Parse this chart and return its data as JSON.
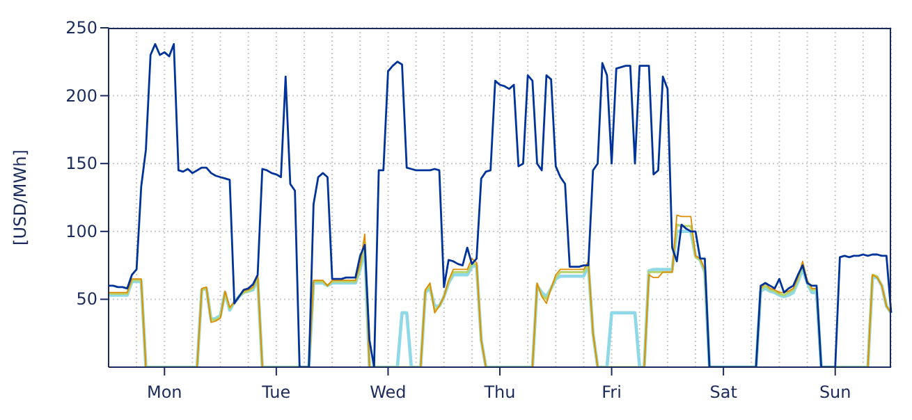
{
  "chart_data": {
    "type": "line",
    "ylabel": "[USD/MWh]",
    "ylim": [
      0,
      250
    ],
    "yticks": [
      50,
      100,
      150,
      200,
      250
    ],
    "categories": [
      null,
      null,
      null,
      null,
      null,
      null,
      null,
      null,
      null,
      null,
      null,
      null,
      "Mon",
      null,
      null,
      null,
      null,
      null,
      null,
      null,
      null,
      null,
      null,
      null,
      null,
      null,
      null,
      null,
      null,
      null,
      null,
      null,
      null,
      null,
      null,
      null,
      "Tue",
      null,
      null,
      null,
      null,
      null,
      null,
      null,
      null,
      null,
      null,
      null,
      null,
      null,
      null,
      null,
      null,
      null,
      null,
      null,
      null,
      null,
      null,
      null,
      "Wed",
      null,
      null,
      null,
      null,
      null,
      null,
      null,
      null,
      null,
      null,
      null,
      null,
      null,
      null,
      null,
      null,
      null,
      null,
      null,
      null,
      null,
      null,
      null,
      "Thu",
      null,
      null,
      null,
      null,
      null,
      null,
      null,
      null,
      null,
      null,
      null,
      null,
      null,
      null,
      null,
      null,
      null,
      null,
      null,
      null,
      null,
      null,
      null,
      "Fri",
      null,
      null,
      null,
      null,
      null,
      null,
      null,
      null,
      null,
      null,
      null,
      null,
      null,
      null,
      null,
      null,
      null,
      null,
      null,
      null,
      null,
      null,
      null,
      "Sat",
      null,
      null,
      null,
      null,
      null,
      null,
      null,
      null,
      null,
      null,
      null,
      null,
      null,
      null,
      null,
      null,
      null,
      null,
      null,
      null,
      null,
      null,
      null,
      "Sun",
      null,
      null,
      null,
      null,
      null,
      null,
      null,
      null,
      null,
      null,
      null,
      null
    ],
    "grid": true,
    "series": [
      {
        "color": "#e08a00",
        "values": [
          55,
          55,
          55,
          55,
          55,
          65,
          65,
          65,
          0,
          0,
          0,
          0,
          0,
          0,
          0,
          0,
          0,
          0,
          0,
          0,
          58,
          59,
          33,
          34,
          36,
          56,
          44,
          48,
          52,
          56,
          57,
          59,
          68,
          0,
          0,
          0,
          0,
          0,
          0,
          0,
          0,
          0,
          0,
          0,
          64,
          64,
          64,
          60,
          64,
          64,
          64,
          64,
          64,
          64,
          76,
          98,
          0,
          0,
          0,
          0,
          0,
          0,
          0,
          0,
          0,
          0,
          0,
          0,
          57,
          62,
          40,
          45,
          52,
          64,
          72,
          72,
          72,
          72,
          80,
          77,
          20,
          0,
          0,
          0,
          0,
          0,
          0,
          0,
          0,
          0,
          0,
          0,
          62,
          52,
          47,
          58,
          68,
          72,
          72,
          72,
          72,
          72,
          72,
          78,
          25,
          0,
          0,
          0,
          0,
          0,
          0,
          0,
          0,
          0,
          0,
          0,
          68,
          66,
          66,
          70,
          70,
          70,
          112,
          111,
          111,
          111,
          82,
          80,
          72,
          0,
          0,
          0,
          0,
          0,
          0,
          0,
          0,
          0,
          0,
          0,
          58,
          62,
          58,
          57,
          55,
          55,
          56,
          58,
          66,
          78,
          64,
          58,
          58,
          0,
          0,
          0,
          0,
          0,
          0,
          0,
          0,
          0,
          0,
          0,
          68,
          66,
          60,
          45,
          40
        ]
      },
      {
        "color": "#b5d36b",
        "values": [
          54,
          54,
          54,
          54,
          54,
          64,
          64,
          64,
          0,
          0,
          0,
          0,
          0,
          0,
          0,
          0,
          0,
          0,
          0,
          0,
          57,
          58,
          35,
          35,
          37,
          55,
          43,
          48,
          52,
          55,
          56,
          58,
          66,
          0,
          0,
          0,
          0,
          0,
          0,
          0,
          0,
          0,
          0,
          0,
          63,
          63,
          63,
          60,
          63,
          63,
          63,
          63,
          63,
          63,
          73,
          92,
          0,
          0,
          0,
          0,
          0,
          0,
          0,
          0,
          0,
          0,
          0,
          0,
          56,
          60,
          42,
          45,
          52,
          63,
          70,
          70,
          70,
          70,
          76,
          76,
          20,
          0,
          0,
          0,
          0,
          0,
          0,
          0,
          0,
          0,
          0,
          0,
          61,
          53,
          50,
          58,
          66,
          70,
          70,
          70,
          70,
          70,
          70,
          76,
          25,
          0,
          0,
          0,
          0,
          0,
          0,
          0,
          0,
          0,
          0,
          0,
          70,
          70,
          70,
          70,
          70,
          70,
          105,
          104,
          104,
          104,
          81,
          79,
          71,
          0,
          0,
          0,
          0,
          0,
          0,
          0,
          0,
          0,
          0,
          0,
          57,
          60,
          57,
          56,
          54,
          53,
          55,
          57,
          65,
          75,
          63,
          57,
          57,
          0,
          0,
          0,
          0,
          0,
          0,
          0,
          0,
          0,
          0,
          0,
          68,
          67,
          60,
          45,
          40
        ]
      },
      {
        "color": "#8ed8e8",
        "values": [
          53,
          53,
          53,
          53,
          53,
          63,
          63,
          63,
          0,
          0,
          0,
          0,
          0,
          0,
          0,
          0,
          0,
          0,
          0,
          0,
          57,
          58,
          35,
          36,
          38,
          55,
          42,
          48,
          52,
          55,
          56,
          57,
          65,
          0,
          0,
          0,
          0,
          0,
          0,
          0,
          0,
          0,
          0,
          0,
          62,
          62,
          62,
          60,
          62,
          62,
          62,
          62,
          62,
          62,
          72,
          87,
          0,
          0,
          0,
          0,
          0,
          0,
          0,
          40,
          40,
          0,
          0,
          0,
          55,
          58,
          45,
          45,
          52,
          62,
          68,
          68,
          68,
          68,
          74,
          75,
          20,
          0,
          0,
          0,
          0,
          0,
          0,
          0,
          0,
          0,
          0,
          0,
          60,
          55,
          52,
          58,
          65,
          67,
          67,
          67,
          67,
          67,
          67,
          75,
          25,
          0,
          0,
          0,
          40,
          40,
          40,
          40,
          40,
          40,
          0,
          0,
          71,
          72,
          72,
          72,
          72,
          72,
          100,
          100,
          100,
          100,
          82,
          79,
          70,
          0,
          0,
          0,
          0,
          0,
          0,
          0,
          0,
          0,
          0,
          0,
          56,
          58,
          56,
          55,
          53,
          52,
          53,
          55,
          63,
          72,
          62,
          55,
          55,
          0,
          0,
          0,
          0,
          0,
          0,
          0,
          0,
          0,
          0,
          0,
          66,
          66,
          60,
          45,
          40
        ]
      },
      {
        "color": "#003399",
        "values": [
          60,
          60,
          59,
          59,
          58,
          68,
          72,
          133,
          160,
          230,
          238,
          230,
          232,
          229,
          238,
          145,
          144,
          146,
          143,
          145,
          147,
          147,
          143,
          141,
          140,
          139,
          138,
          47,
          52,
          57,
          58,
          61,
          68,
          146,
          145,
          143,
          142,
          140,
          214,
          135,
          130,
          0,
          0,
          0,
          120,
          140,
          143,
          140,
          65,
          65,
          65,
          66,
          66,
          66,
          82,
          90,
          20,
          0,
          145,
          145,
          218,
          222,
          225,
          223,
          147,
          146,
          145,
          145,
          145,
          145,
          146,
          145,
          59,
          79,
          78,
          76,
          75,
          88,
          76,
          80,
          139,
          144,
          145,
          211,
          208,
          207,
          205,
          208,
          148,
          150,
          215,
          211,
          150,
          145,
          215,
          212,
          148,
          140,
          135,
          74,
          74,
          74,
          75,
          75,
          145,
          150,
          224,
          215,
          150,
          220,
          221,
          222,
          222,
          150,
          222,
          222,
          222,
          142,
          145,
          214,
          205,
          88,
          78,
          105,
          102,
          100,
          100,
          80,
          80,
          0,
          0,
          0,
          0,
          0,
          0,
          0,
          0,
          0,
          0,
          0,
          60,
          62,
          60,
          58,
          65,
          55,
          58,
          60,
          68,
          75,
          62,
          60,
          60,
          0,
          0,
          0,
          0,
          81,
          82,
          81,
          82,
          82,
          83,
          82,
          83,
          83,
          82,
          82,
          40
        ]
      }
    ]
  }
}
